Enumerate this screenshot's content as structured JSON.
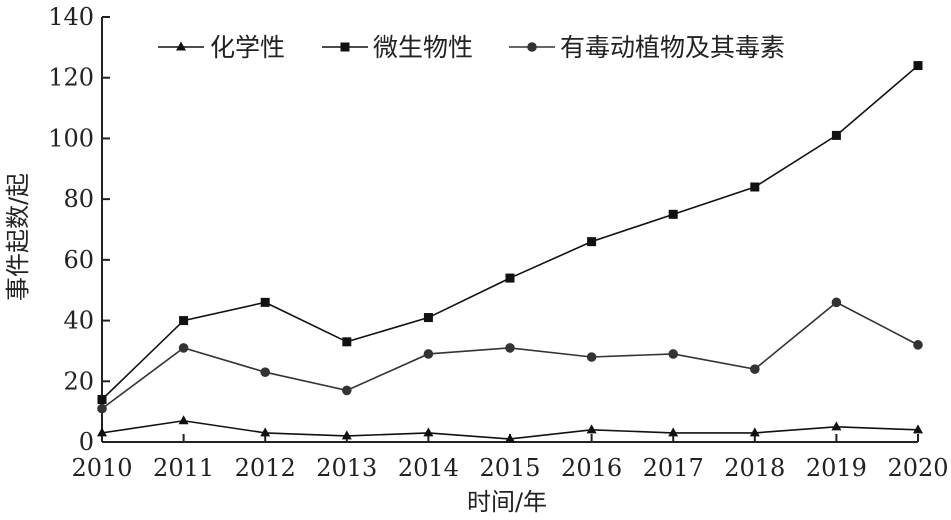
{
  "chart_data": {
    "type": "line",
    "x": [
      2010,
      2011,
      2012,
      2013,
      2014,
      2015,
      2016,
      2017,
      2018,
      2019,
      2020
    ],
    "xlabel": "时间/年",
    "ylabel": "事件起数/起",
    "ylim": [
      0,
      140
    ],
    "yticks": [
      0,
      20,
      40,
      60,
      80,
      100,
      120,
      140
    ],
    "grid": false,
    "legend_position": "top",
    "series": [
      {
        "name": "化学性",
        "marker": "triangle",
        "color": "#111111",
        "values": [
          3,
          7,
          3,
          2,
          3,
          1,
          4,
          3,
          3,
          5,
          4
        ]
      },
      {
        "name": "微生物性",
        "marker": "square",
        "color": "#111111",
        "values": [
          14,
          40,
          46,
          33,
          41,
          54,
          66,
          75,
          84,
          101,
          124
        ]
      },
      {
        "name": "有毒动植物及其毒素",
        "marker": "circle",
        "color": "#333333",
        "values": [
          11,
          31,
          23,
          17,
          29,
          31,
          28,
          29,
          24,
          46,
          32
        ]
      }
    ]
  }
}
